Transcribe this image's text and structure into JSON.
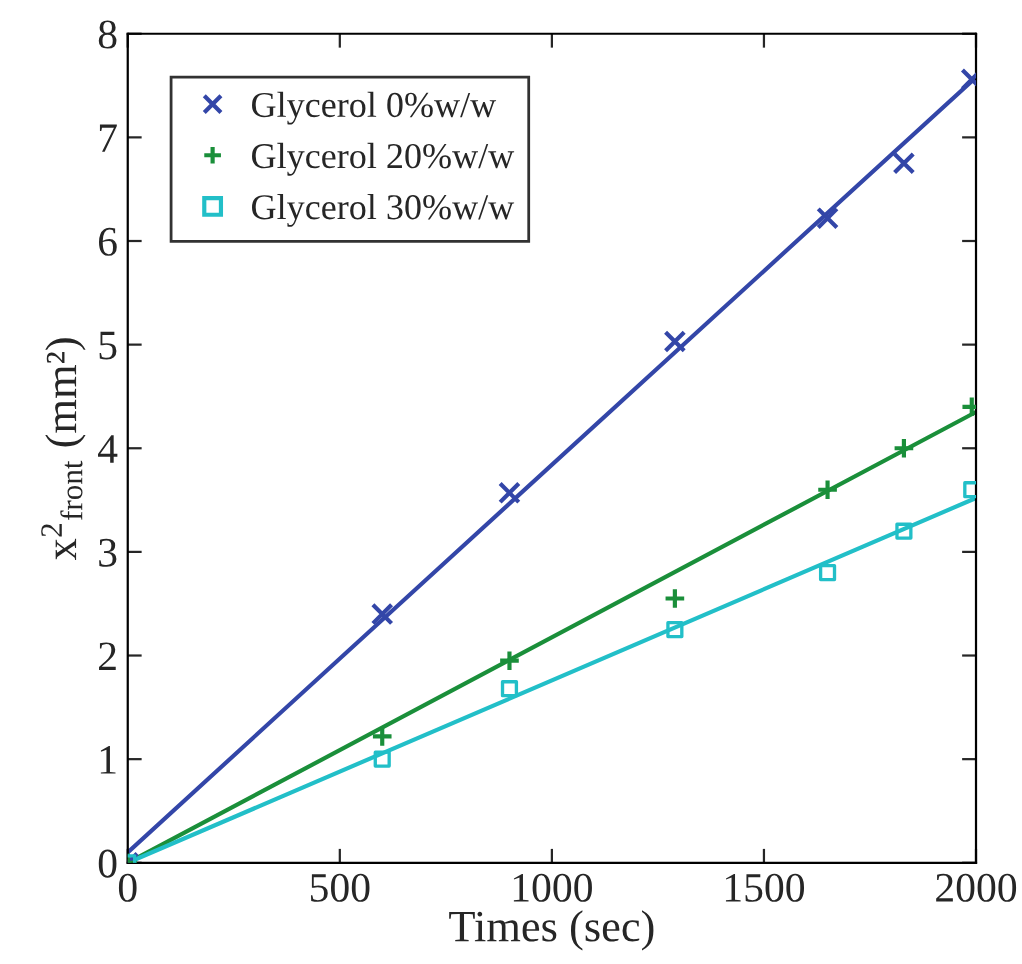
{
  "chart_data": {
    "type": "scatter",
    "xlabel": "Times (sec)",
    "ylabel": "x$^{2}$$_{front}$ (mm²)",
    "xlim": [
      0,
      2000
    ],
    "xticks": [
      0,
      500,
      1000,
      1500,
      2000
    ],
    "ylim": [
      0,
      8
    ],
    "yticks": [
      0,
      1,
      2,
      3,
      4,
      5,
      6,
      7,
      8
    ],
    "grid": false,
    "legend": "top left",
    "series": [
      {
        "name": "Glycerol 0%w/w",
        "marker": "cross",
        "color": "#3346a8",
        "x": [
          0,
          600,
          900,
          1290,
          1650,
          1830,
          1990
        ],
        "values": [
          0,
          2.4,
          3.57,
          5.03,
          6.22,
          6.75,
          7.56
        ]
      },
      {
        "name": "Glycerol 20%w/w",
        "marker": "plus",
        "color": "#1a8f3a",
        "x": [
          0,
          600,
          900,
          1290,
          1650,
          1830,
          1990
        ],
        "values": [
          0,
          1.22,
          1.95,
          2.55,
          3.6,
          4.0,
          4.4
        ]
      },
      {
        "name": "Glycerol 30%w/w",
        "marker": "square",
        "color": "#22bfc8",
        "x": [
          0,
          600,
          900,
          1290,
          1650,
          1830,
          1990
        ],
        "values": [
          0,
          1.0,
          1.68,
          2.25,
          2.8,
          3.2,
          3.6
        ]
      },
      {
        "type": "line",
        "color": "#3346a8",
        "x": [
          0,
          2000
        ],
        "values": [
          0.1,
          7.58
        ]
      },
      {
        "type": "line",
        "color": "#1a8f3a",
        "x": [
          0,
          2000
        ],
        "values": [
          0,
          4.35
        ]
      },
      {
        "type": "line",
        "color": "#22bfc8",
        "x": [
          0,
          2000
        ],
        "values": [
          0,
          3.52
        ]
      }
    ]
  }
}
